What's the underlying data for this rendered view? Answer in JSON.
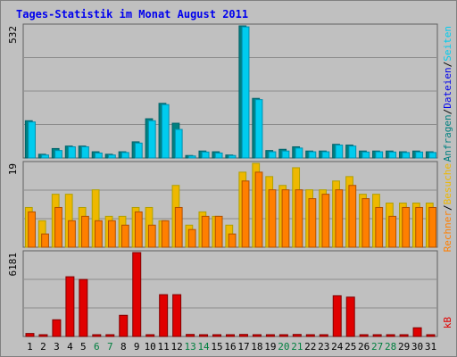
{
  "title": "Tages-Statistik im Monat August 2011",
  "colors": {
    "background": "#c0c0c0",
    "panel": "#c0c0c0",
    "grid": "#8c8c8c",
    "title": "#0000ee",
    "weekday": "#000000",
    "weekend": "#007f3f",
    "anfragen": "#008080",
    "dateien": "#0000ee",
    "seiten": "#00ccee",
    "besuche": "#eeb800",
    "rechner": "#ff7f00",
    "kb": "#e00000"
  },
  "chart_data": [
    {
      "type": "bar",
      "panel": "requests",
      "scale_max_label": "532",
      "ylim": [
        0,
        532
      ],
      "x": [
        "1",
        "2",
        "3",
        "4",
        "5",
        "6",
        "7",
        "8",
        "9",
        "10",
        "11",
        "12",
        "13",
        "14",
        "15",
        "16",
        "17",
        "18",
        "19",
        "20",
        "21",
        "22",
        "23",
        "24",
        "25",
        "26",
        "27",
        "28",
        "29",
        "30",
        "31"
      ],
      "weekend_days": [
        "6",
        "7",
        "13",
        "14",
        "20",
        "21",
        "27",
        "28"
      ],
      "legend": [
        {
          "text": "Anfragen",
          "color_key": "anfragen"
        },
        {
          "text": "/",
          "color_key": "weekday"
        },
        {
          "text": "Dateien",
          "color_key": "dateien"
        },
        {
          "text": "/",
          "color_key": "weekday"
        },
        {
          "text": "Seiten",
          "color_key": "seiten"
        }
      ],
      "series": [
        {
          "name": "Anfragen",
          "values": [
            150,
            15,
            38,
            48,
            48,
            25,
            15,
            25,
            65,
            158,
            220,
            140,
            10,
            28,
            25,
            12,
            532,
            240,
            30,
            35,
            45,
            28,
            28,
            55,
            52,
            28,
            28,
            28,
            25,
            28,
            25
          ]
        },
        {
          "name": "Dateien",
          "values": [
            145,
            12,
            30,
            45,
            45,
            20,
            12,
            22,
            60,
            150,
            215,
            115,
            8,
            24,
            20,
            10,
            528,
            235,
            25,
            28,
            40,
            25,
            25,
            52,
            48,
            24,
            25,
            24,
            22,
            24,
            22
          ]
        }
      ]
    },
    {
      "type": "bar",
      "panel": "visits",
      "scale_max_label": "19",
      "ylim": [
        0,
        19
      ],
      "x": [
        "1",
        "2",
        "3",
        "4",
        "5",
        "6",
        "7",
        "8",
        "9",
        "10",
        "11",
        "12",
        "13",
        "14",
        "15",
        "16",
        "17",
        "18",
        "19",
        "20",
        "21",
        "22",
        "23",
        "24",
        "25",
        "26",
        "27",
        "28",
        "29",
        "30",
        "31"
      ],
      "legend": [
        {
          "text": "Rechner",
          "color_key": "rechner"
        },
        {
          "text": "/",
          "color_key": "weekday"
        },
        {
          "text": "Besuche",
          "color_key": "besuche"
        }
      ],
      "series": [
        {
          "name": "Besuche",
          "values": [
            9,
            6,
            12,
            12,
            9,
            13,
            7,
            7,
            9,
            9,
            6,
            14,
            5,
            8,
            7,
            5,
            17,
            19,
            16,
            14,
            18,
            13,
            13,
            15,
            16,
            12,
            12,
            10,
            10,
            10,
            10
          ]
        },
        {
          "name": "Rechner",
          "values": [
            8,
            3,
            9,
            6,
            7,
            6,
            6,
            5,
            8,
            5,
            6,
            9,
            4,
            7,
            7,
            3,
            15,
            17,
            13,
            13,
            13,
            11,
            12,
            13,
            14,
            11,
            9,
            7,
            9,
            9,
            9
          ]
        }
      ]
    },
    {
      "type": "bar",
      "panel": "kb",
      "scale_max_label": "6181",
      "ylim": [
        0,
        6181
      ],
      "x": [
        "1",
        "2",
        "3",
        "4",
        "5",
        "6",
        "7",
        "8",
        "9",
        "10",
        "11",
        "12",
        "13",
        "14",
        "15",
        "16",
        "17",
        "18",
        "19",
        "20",
        "21",
        "22",
        "23",
        "24",
        "25",
        "26",
        "27",
        "28",
        "29",
        "30",
        "31"
      ],
      "legend": [
        {
          "text": "kB",
          "color_key": "kb"
        }
      ],
      "series": [
        {
          "name": "kB",
          "values": [
            220,
            100,
            1230,
            4400,
            4200,
            80,
            80,
            1560,
            6181,
            80,
            3080,
            3080,
            150,
            80,
            80,
            80,
            150,
            80,
            80,
            80,
            150,
            80,
            80,
            3000,
            2900,
            80,
            80,
            80,
            80,
            640,
            80
          ]
        }
      ]
    }
  ]
}
